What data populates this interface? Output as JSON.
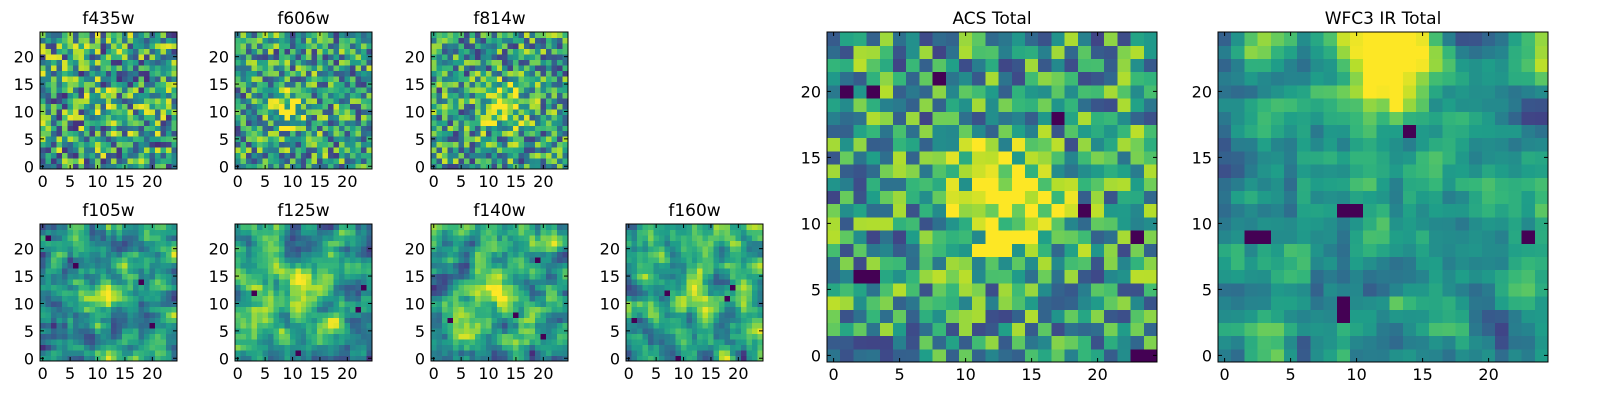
{
  "chart_data": {
    "type": "heatmap",
    "colormap": "viridis",
    "grid_size": 25,
    "tick_values": [
      0,
      5,
      10,
      15,
      20
    ],
    "panels": [
      {
        "title": "f435w",
        "seed": 11,
        "blob": [
          13,
          11
        ],
        "blob_amp": 0.1,
        "smooth": 0,
        "noise": 0.85,
        "dark_pixels": []
      },
      {
        "title": "f606w",
        "seed": 23,
        "blob": [
          9,
          11
        ],
        "blob_amp": 0.35,
        "smooth": 0,
        "noise": 0.75,
        "dark_pixels": []
      },
      {
        "title": "f814w",
        "seed": 37,
        "blob": [
          13,
          11
        ],
        "blob_amp": 0.45,
        "smooth": 0,
        "noise": 0.75,
        "dark_pixels": []
      },
      {
        "title": "f105w",
        "seed": 41,
        "blob": [
          12,
          12
        ],
        "blob_amp": 0.4,
        "smooth": 1,
        "noise": 0.85,
        "dark_pixels": [
          [
            1,
            22
          ],
          [
            20,
            6
          ],
          [
            18,
            14
          ],
          [
            6,
            17
          ]
        ]
      },
      {
        "title": "f125w",
        "seed": 53,
        "blob": [
          12,
          12
        ],
        "blob_amp": 0.3,
        "smooth": 1,
        "noise": 0.85,
        "dark_pixels": [
          [
            23,
            13
          ],
          [
            22,
            9
          ],
          [
            3,
            12
          ],
          [
            11,
            1
          ]
        ]
      },
      {
        "title": "f140w",
        "seed": 67,
        "blob": [
          10,
          13
        ],
        "blob_amp": 0.4,
        "smooth": 1,
        "noise": 0.85,
        "dark_pixels": [
          [
            19,
            18
          ],
          [
            3,
            7
          ],
          [
            20,
            4
          ],
          [
            15,
            8
          ]
        ]
      },
      {
        "title": "f160w",
        "seed": 79,
        "blob": [
          12,
          12
        ],
        "blob_amp": 0.3,
        "smooth": 1,
        "noise": 0.85,
        "dark_pixels": [
          [
            1,
            7
          ],
          [
            7,
            12
          ],
          [
            18,
            11
          ],
          [
            19,
            13
          ],
          [
            9,
            0
          ]
        ]
      },
      {
        "title": "ACS Total",
        "seed": 97,
        "blob": [
          13,
          12
        ],
        "blob_amp": 0.55,
        "smooth": 0,
        "noise": 0.7,
        "dark_pixels": [
          [
            8,
            21
          ],
          [
            1,
            20
          ],
          [
            3,
            20
          ],
          [
            3,
            6
          ],
          [
            2,
            6
          ],
          [
            17,
            18
          ],
          [
            23,
            9
          ],
          [
            19,
            11
          ],
          [
            23,
            0
          ],
          [
            24,
            0
          ]
        ]
      },
      {
        "title": "WFC3 IR Total",
        "seed": 113,
        "blob": [
          12,
          22
        ],
        "blob_amp": 0.7,
        "smooth": 1,
        "noise": 0.7,
        "dark_pixels": [
          [
            3,
            9
          ],
          [
            2,
            9
          ],
          [
            9,
            11
          ],
          [
            10,
            11
          ],
          [
            23,
            9
          ],
          [
            9,
            3
          ],
          [
            9,
            4
          ],
          [
            14,
            17
          ]
        ]
      }
    ]
  }
}
